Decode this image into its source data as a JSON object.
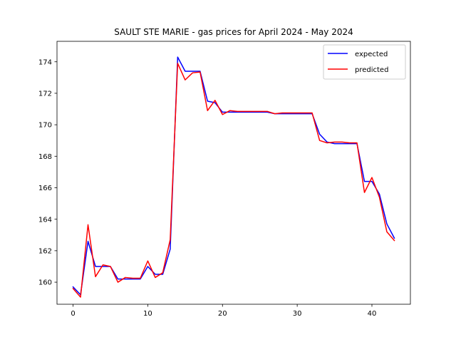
{
  "chart_data": {
    "type": "line",
    "title": "SAULT STE MARIE - gas prices for April 2024 - May 2024",
    "xlabel": "",
    "ylabel": "",
    "xlim": [
      -2.15,
      45.15
    ],
    "ylim": [
      158.6,
      175.3
    ],
    "x_ticks": [
      0,
      10,
      20,
      30,
      40
    ],
    "y_ticks": [
      160,
      162,
      164,
      166,
      168,
      170,
      172,
      174
    ],
    "grid": false,
    "legend_position": "upper right",
    "x": [
      0,
      1,
      2,
      3,
      4,
      5,
      6,
      7,
      8,
      9,
      10,
      11,
      12,
      13,
      14,
      15,
      16,
      17,
      18,
      19,
      20,
      21,
      22,
      23,
      24,
      25,
      26,
      27,
      28,
      29,
      30,
      31,
      32,
      33,
      34,
      35,
      36,
      37,
      38,
      39,
      40,
      41,
      42,
      43
    ],
    "series": [
      {
        "name": "expected",
        "color": "#0000ff",
        "values": [
          159.7,
          159.2,
          162.6,
          161.0,
          161.0,
          161.0,
          160.2,
          160.2,
          160.2,
          160.2,
          161.0,
          160.5,
          160.5,
          162.1,
          174.3,
          173.4,
          173.4,
          173.4,
          171.5,
          171.4,
          170.8,
          170.8,
          170.8,
          170.8,
          170.8,
          170.8,
          170.8,
          170.7,
          170.7,
          170.7,
          170.7,
          170.7,
          170.7,
          169.4,
          168.9,
          168.8,
          168.8,
          168.8,
          168.8,
          166.4,
          166.4,
          165.6,
          163.7,
          162.8
        ]
      },
      {
        "name": "predicted",
        "color": "#ff0000",
        "values": [
          159.6,
          159.05,
          163.65,
          160.35,
          161.1,
          161.0,
          160.0,
          160.3,
          160.25,
          160.25,
          161.35,
          160.3,
          160.6,
          162.7,
          173.9,
          172.85,
          173.3,
          173.35,
          170.9,
          171.55,
          170.65,
          170.9,
          170.85,
          170.85,
          170.85,
          170.85,
          170.85,
          170.7,
          170.75,
          170.75,
          170.75,
          170.75,
          170.75,
          169.0,
          168.85,
          168.9,
          168.9,
          168.85,
          168.85,
          165.7,
          166.65,
          165.4,
          163.2,
          162.65
        ]
      }
    ]
  }
}
